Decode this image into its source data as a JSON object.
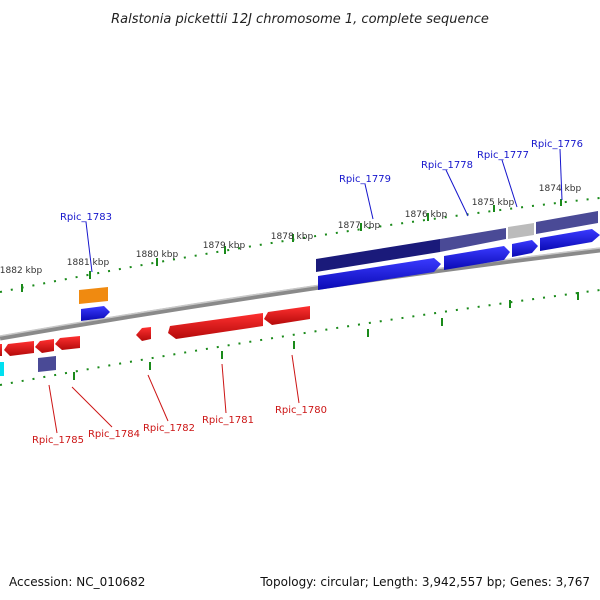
{
  "header": {
    "title": "Ralstonia pickettii 12J chromosome 1, complete sequence"
  },
  "footer": {
    "accession": "Accession: NC_010682",
    "summary": "Topology: circular; Length: 3,942,557 bp; Genes: 3,767"
  },
  "scale": {
    "ticks": [
      {
        "label": "1874 kbp"
      },
      {
        "label": "1875 kbp"
      },
      {
        "label": "1876 kbp"
      },
      {
        "label": "1877 kbp"
      },
      {
        "label": "1878 kbp"
      },
      {
        "label": "1879 kbp"
      },
      {
        "label": "1880 kbp"
      },
      {
        "label": "1881 kbp"
      },
      {
        "label": "1882 kbp"
      }
    ]
  },
  "genes_forward": [
    {
      "label": "Rpic_1776"
    },
    {
      "label": "Rpic_1777"
    },
    {
      "label": "Rpic_1778"
    },
    {
      "label": "Rpic_1779"
    },
    {
      "label": "Rpic_1783"
    }
  ],
  "genes_reverse": [
    {
      "label": "Rpic_1780"
    },
    {
      "label": "Rpic_1781"
    },
    {
      "label": "Rpic_1782"
    },
    {
      "label": "Rpic_1784"
    },
    {
      "label": "Rpic_1785"
    }
  ],
  "colors": {
    "backbone": "#8a8a8a",
    "gene_blue": "#1a1aee",
    "gene_red": "#e01010",
    "feature_navy": "#1a1a7a",
    "feature_slate": "#4a4a96",
    "feature_gray": "#bbbbbb",
    "feature_orange": "#f08a10",
    "feature_cyan": "#00e0f0",
    "tick_green": "#1a8a1a",
    "label_blue": "#1515cc",
    "label_red": "#cc1515"
  }
}
